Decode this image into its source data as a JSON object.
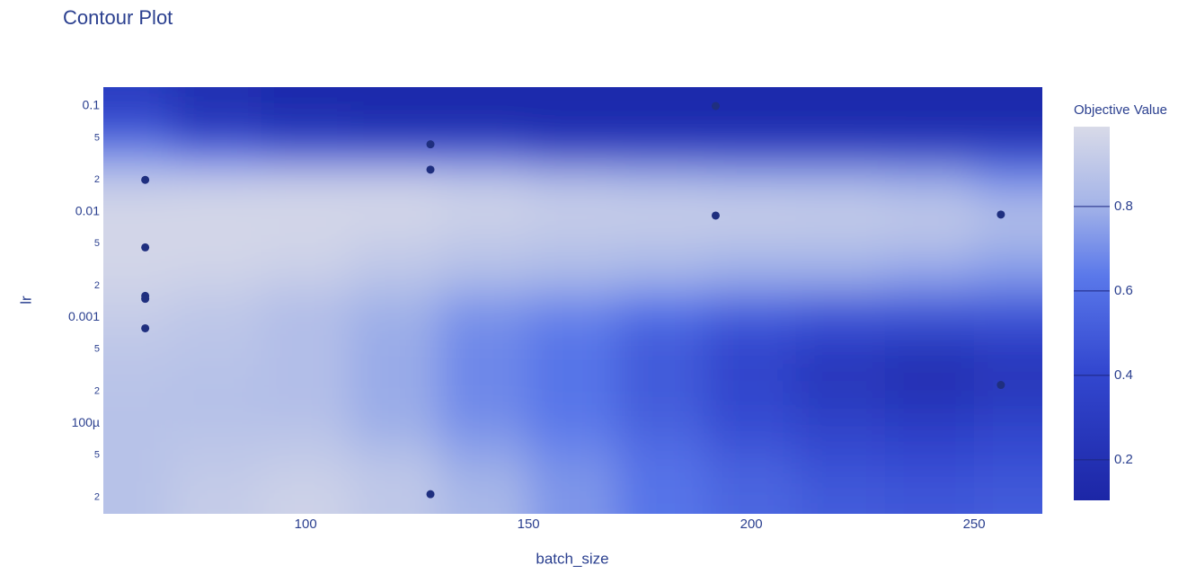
{
  "chart_data": {
    "type": "contour",
    "title": "Contour Plot",
    "x_label": "batch_size",
    "y_label": "lr",
    "xlim": [
      54.6,
      265.3
    ],
    "xticks": [
      100,
      150,
      200,
      250
    ],
    "ylim": [
      1.39e-05,
      0.1507
    ],
    "y_log": true,
    "yticks": [
      0.1,
      {
        "value": 0.05,
        "label": "5"
      },
      {
        "value": 0.02,
        "label": "2"
      },
      0.01,
      {
        "value": 0.005,
        "label": "5"
      },
      {
        "value": 0.002,
        "label": "2"
      },
      0.001,
      {
        "value": 0.0005,
        "label": "5"
      },
      {
        "value": 0.0002,
        "label": "2"
      },
      {
        "value": 0.0001,
        "label": "100µ"
      },
      {
        "value": 5e-05,
        "label": "5"
      },
      {
        "value": 2e-05,
        "label": "2"
      }
    ],
    "colorscale": [
      [
        0,
        "#1c26a6"
      ],
      [
        0.35,
        "#3348d0"
      ],
      [
        0.6,
        "#5a78ea"
      ],
      [
        0.8,
        "#a7b6e8"
      ],
      [
        1,
        "#d8dae8"
      ]
    ],
    "contour": {
      "x": [
        60,
        80,
        100,
        120,
        140,
        160,
        180,
        200,
        220,
        240,
        260
      ],
      "y": [
        0.12,
        0.06,
        0.035,
        0.02,
        0.01,
        0.005,
        0.0025,
        0.0012,
        0.0006,
        0.0003,
        0.00015,
        8e-05,
        4e-05,
        2e-05
      ],
      "z": [
        [
          0.3,
          0.2,
          0.15,
          0.15,
          0.15,
          0.15,
          0.15,
          0.15,
          0.15,
          0.15,
          0.15
        ],
        [
          0.45,
          0.25,
          0.2,
          0.15,
          0.15,
          0.15,
          0.15,
          0.15,
          0.15,
          0.15,
          0.15
        ],
        [
          0.7,
          0.6,
          0.5,
          0.5,
          0.5,
          0.4,
          0.4,
          0.4,
          0.4,
          0.4,
          0.4
        ],
        [
          0.9,
          0.92,
          0.93,
          0.93,
          0.9,
          0.85,
          0.82,
          0.8,
          0.8,
          0.78,
          0.7
        ],
        [
          0.97,
          0.97,
          0.97,
          0.97,
          0.95,
          0.93,
          0.93,
          0.93,
          0.92,
          0.9,
          0.85
        ],
        [
          0.97,
          0.97,
          0.96,
          0.93,
          0.9,
          0.88,
          0.87,
          0.86,
          0.86,
          0.85,
          0.8
        ],
        [
          0.96,
          0.95,
          0.93,
          0.88,
          0.84,
          0.82,
          0.8,
          0.78,
          0.78,
          0.75,
          0.72
        ],
        [
          0.93,
          0.9,
          0.85,
          0.8,
          0.72,
          0.68,
          0.62,
          0.55,
          0.5,
          0.5,
          0.5
        ],
        [
          0.9,
          0.88,
          0.85,
          0.78,
          0.68,
          0.62,
          0.5,
          0.4,
          0.35,
          0.3,
          0.35
        ],
        [
          0.88,
          0.87,
          0.85,
          0.78,
          0.68,
          0.62,
          0.5,
          0.38,
          0.25,
          0.18,
          0.25
        ],
        [
          0.87,
          0.86,
          0.85,
          0.78,
          0.68,
          0.62,
          0.5,
          0.4,
          0.3,
          0.25,
          0.3
        ],
        [
          0.87,
          0.88,
          0.88,
          0.8,
          0.72,
          0.65,
          0.55,
          0.45,
          0.38,
          0.35,
          0.4
        ],
        [
          0.87,
          0.9,
          0.92,
          0.88,
          0.78,
          0.7,
          0.6,
          0.52,
          0.45,
          0.42,
          0.45
        ],
        [
          0.87,
          0.92,
          0.95,
          0.9,
          0.82,
          0.72,
          0.62,
          0.55,
          0.5,
          0.48,
          0.5
        ]
      ]
    },
    "points": {
      "color": "#1f2f7f",
      "x": [
        64,
        64,
        64,
        64,
        64,
        128,
        128,
        128,
        192,
        192,
        256,
        256
      ],
      "y": [
        0.02,
        0.0046,
        0.0016,
        0.0015,
        0.00079,
        0.0434,
        0.025,
        2.13e-05,
        0.1,
        0.0092,
        0.0094,
        0.00023
      ]
    },
    "colorbar": {
      "title": "Objective Value",
      "lim": [
        0.104,
        0.989
      ],
      "ticks": [
        0.2,
        0.4,
        0.6,
        0.8
      ]
    }
  }
}
